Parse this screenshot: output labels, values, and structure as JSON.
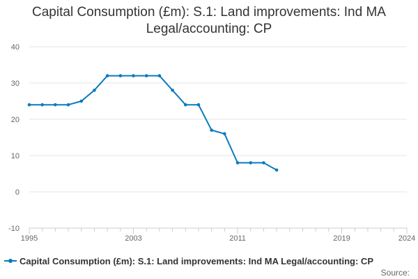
{
  "title_line1": "Capital Consumption (£m): S.1: Land improvements: Ind MA",
  "title_line2": "Legal/accounting: CP",
  "source_label": "Source:",
  "colors": {
    "series": "#0a7abf",
    "grid": "#e6e6e6",
    "axis_text": "#666666"
  },
  "chart_data": {
    "type": "line",
    "title": "Capital Consumption (£m): S.1: Land improvements: Ind MA Legal/accounting: CP",
    "xlabel": "",
    "ylabel": "",
    "xlim": [
      1995,
      2024
    ],
    "ylim": [
      -10,
      40
    ],
    "x_ticks": [
      1995,
      2003,
      2011,
      2019,
      2024
    ],
    "y_ticks": [
      -10,
      0,
      10,
      20,
      30,
      40
    ],
    "grid": true,
    "legend_position": "bottom-left",
    "series": [
      {
        "name": "Capital Consumption (£m): S.1: Land improvements: Ind MA Legal/accounting: CP",
        "x": [
          1995,
          1996,
          1997,
          1998,
          1999,
          2000,
          2001,
          2002,
          2003,
          2004,
          2005,
          2006,
          2007,
          2008,
          2009,
          2010,
          2011,
          2012,
          2013,
          2014
        ],
        "values": [
          24,
          24,
          24,
          24,
          25,
          28,
          32,
          32,
          32,
          32,
          32,
          28,
          24,
          24,
          17,
          16,
          8,
          8,
          8,
          6
        ]
      }
    ]
  }
}
